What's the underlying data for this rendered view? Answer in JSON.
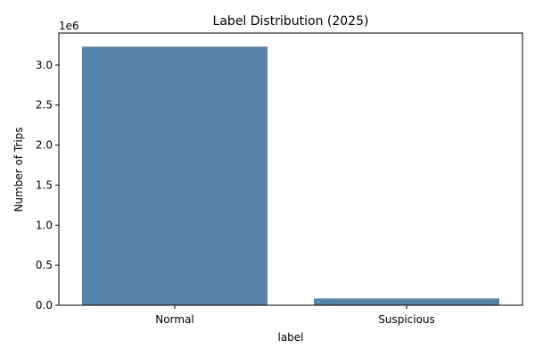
{
  "chart_data": {
    "type": "bar",
    "title": "Label Distribution (2025)",
    "xlabel": "label",
    "ylabel": "Number of Trips",
    "offset_text": "1e6",
    "categories": [
      "Normal",
      "Suspicious"
    ],
    "values": [
      3230000,
      85000
    ],
    "ylim": [
      0,
      3400000
    ],
    "yticks": [
      0,
      500000,
      1000000,
      1500000,
      2000000,
      2500000,
      3000000
    ],
    "ytick_labels": [
      "0.0",
      "0.5",
      "1.0",
      "1.5",
      "2.0",
      "2.5",
      "3.0"
    ],
    "bar_color": "#5583aa",
    "grid": false,
    "legend": "none"
  }
}
